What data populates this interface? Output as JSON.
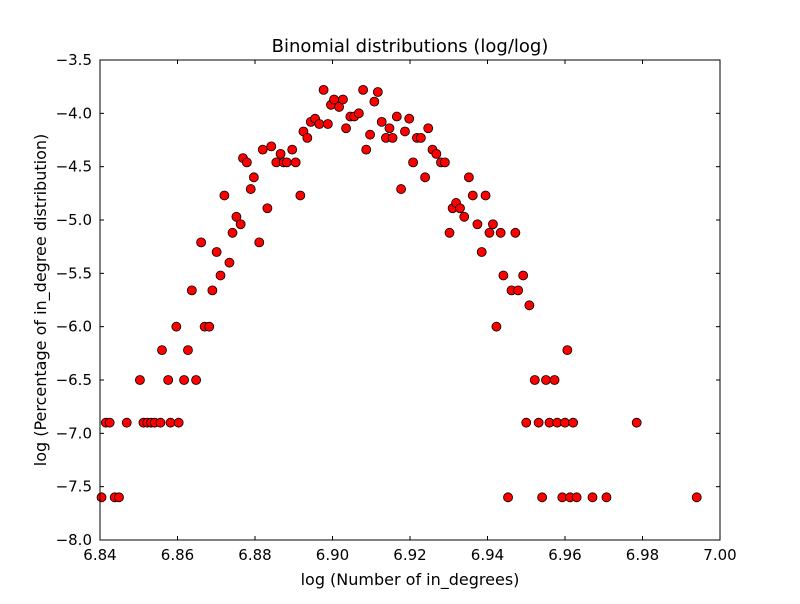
{
  "chart_data": {
    "type": "scatter",
    "title": "Binomial distributions (log/log)",
    "xlabel": "log (Number of in_degrees)",
    "ylabel": "log (Percentage of in_degree distribution)",
    "xlim": [
      6.84,
      7.0
    ],
    "ylim": [
      -8.0,
      -3.5
    ],
    "xticks": [
      6.84,
      6.86,
      6.88,
      6.9,
      6.92,
      6.94,
      6.96,
      6.98,
      7.0
    ],
    "xtick_labels": [
      "6.84",
      "6.86",
      "6.88",
      "6.90",
      "6.92",
      "6.94",
      "6.96",
      "6.98",
      "7.00"
    ],
    "yticks": [
      -3.5,
      -4.0,
      -4.5,
      -5.0,
      -5.5,
      -6.0,
      -6.5,
      -7.0,
      -7.5,
      -8.0
    ],
    "ytick_labels": [
      "−3.5",
      "−4.0",
      "−4.5",
      "−5.0",
      "−5.5",
      "−6.0",
      "−6.5",
      "−7.0",
      "−7.5",
      "−8.0"
    ],
    "grid": false,
    "legend": false,
    "marker_color": "#ff0000",
    "marker_edge_color": "#000000",
    "series": [
      {
        "points": [
          [
            6.8404,
            -7.6
          ],
          [
            6.8415,
            -6.9
          ],
          [
            6.8425,
            -6.9
          ],
          [
            6.8438,
            -7.6
          ],
          [
            6.8449,
            -7.6
          ],
          [
            6.8469,
            -6.9
          ],
          [
            6.8503,
            -6.5
          ],
          [
            6.8512,
            -6.9
          ],
          [
            6.8522,
            -6.9
          ],
          [
            6.8532,
            -6.9
          ],
          [
            6.8541,
            -6.9
          ],
          [
            6.8556,
            -6.9
          ],
          [
            6.856,
            -6.22
          ],
          [
            6.8576,
            -6.5
          ],
          [
            6.8582,
            -6.9
          ],
          [
            6.8597,
            -6.0
          ],
          [
            6.8603,
            -6.9
          ],
          [
            6.8617,
            -6.5
          ],
          [
            6.8627,
            -6.22
          ],
          [
            6.8637,
            -5.66
          ],
          [
            6.8648,
            -6.5
          ],
          [
            6.8661,
            -5.21
          ],
          [
            6.867,
            -6.0
          ],
          [
            6.8682,
            -6.0
          ],
          [
            6.869,
            -5.66
          ],
          [
            6.8701,
            -5.3
          ],
          [
            6.8711,
            -5.52
          ],
          [
            6.8721,
            -4.77
          ],
          [
            6.8734,
            -5.4
          ],
          [
            6.8742,
            -5.12
          ],
          [
            6.8752,
            -4.97
          ],
          [
            6.8763,
            -5.04
          ],
          [
            6.8769,
            -4.42
          ],
          [
            6.8779,
            -4.46
          ],
          [
            6.8789,
            -4.71
          ],
          [
            6.8797,
            -4.6
          ],
          [
            6.8811,
            -5.21
          ],
          [
            6.882,
            -4.34
          ],
          [
            6.8832,
            -4.89
          ],
          [
            6.8842,
            -4.31
          ],
          [
            6.8855,
            -4.46
          ],
          [
            6.8866,
            -4.38
          ],
          [
            6.8874,
            -4.46
          ],
          [
            6.8882,
            -4.46
          ],
          [
            6.8896,
            -4.34
          ],
          [
            6.8905,
            -4.46
          ],
          [
            6.8917,
            -4.77
          ],
          [
            6.8925,
            -4.17
          ],
          [
            6.8935,
            -4.23
          ],
          [
            6.8944,
            -4.08
          ],
          [
            6.8955,
            -4.05
          ],
          [
            6.8966,
            -4.1
          ],
          [
            6.8977,
            -3.78
          ],
          [
            6.8988,
            -4.1
          ],
          [
            6.8996,
            -3.92
          ],
          [
            6.9004,
            -3.87
          ],
          [
            6.9017,
            -3.94
          ],
          [
            6.9027,
            -3.87
          ],
          [
            6.9035,
            -4.14
          ],
          [
            6.9046,
            -4.03
          ],
          [
            6.9056,
            -4.03
          ],
          [
            6.9068,
            -4.0
          ],
          [
            6.9079,
            -3.78
          ],
          [
            6.9087,
            -4.34
          ],
          [
            6.9097,
            -4.2
          ],
          [
            6.9108,
            -3.89
          ],
          [
            6.9117,
            -3.8
          ],
          [
            6.9127,
            -4.08
          ],
          [
            6.9138,
            -4.23
          ],
          [
            6.9147,
            -4.14
          ],
          [
            6.9155,
            -4.23
          ],
          [
            6.9166,
            -4.03
          ],
          [
            6.9177,
            -4.71
          ],
          [
            6.9187,
            -4.17
          ],
          [
            6.9198,
            -4.05
          ],
          [
            6.9208,
            -4.46
          ],
          [
            6.9218,
            -4.23
          ],
          [
            6.9228,
            -4.23
          ],
          [
            6.9239,
            -4.6
          ],
          [
            6.9247,
            -4.14
          ],
          [
            6.9258,
            -4.34
          ],
          [
            6.9268,
            -4.38
          ],
          [
            6.928,
            -4.46
          ],
          [
            6.929,
            -4.46
          ],
          [
            6.9302,
            -5.12
          ],
          [
            6.931,
            -4.89
          ],
          [
            6.9319,
            -4.84
          ],
          [
            6.9329,
            -4.89
          ],
          [
            6.934,
            -4.97
          ],
          [
            6.9352,
            -4.6
          ],
          [
            6.9362,
            -4.77
          ],
          [
            6.9374,
            -5.04
          ],
          [
            6.9385,
            -5.3
          ],
          [
            6.9395,
            -4.77
          ],
          [
            6.9405,
            -5.12
          ],
          [
            6.9414,
            -5.04
          ],
          [
            6.9423,
            -6.0
          ],
          [
            6.9434,
            -5.12
          ],
          [
            6.9441,
            -5.52
          ],
          [
            6.9453,
            -7.6
          ],
          [
            6.9462,
            -5.66
          ],
          [
            6.9472,
            -5.12
          ],
          [
            6.9479,
            -5.66
          ],
          [
            6.9492,
            -5.52
          ],
          [
            6.95,
            -6.9
          ],
          [
            6.9508,
            -5.8
          ],
          [
            6.9522,
            -6.5
          ],
          [
            6.9532,
            -6.9
          ],
          [
            6.9541,
            -7.6
          ],
          [
            6.9551,
            -6.5
          ],
          [
            6.956,
            -6.9
          ],
          [
            6.9573,
            -6.5
          ],
          [
            6.958,
            -6.9
          ],
          [
            6.9593,
            -7.6
          ],
          [
            6.96,
            -6.9
          ],
          [
            6.9606,
            -6.22
          ],
          [
            6.9613,
            -7.6
          ],
          [
            6.9621,
            -6.9
          ],
          [
            6.963,
            -7.6
          ],
          [
            6.9671,
            -7.6
          ],
          [
            6.9707,
            -7.6
          ],
          [
            6.9785,
            -6.9
          ],
          [
            6.994,
            -7.6
          ]
        ]
      }
    ]
  }
}
